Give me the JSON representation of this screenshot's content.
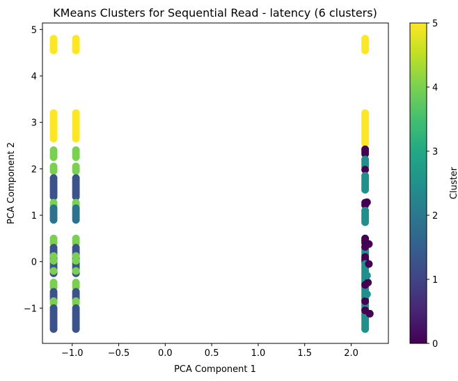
{
  "chart_data": {
    "type": "scatter",
    "title": "KMeans Clusters for Sequential Read - latency (6 clusters)",
    "xlabel": "PCA Component 1",
    "ylabel": "PCA Component 2",
    "xlim": [
      -1.32,
      2.4
    ],
    "ylim": [
      -1.76,
      5.14
    ],
    "xticks": [
      -1.0,
      -0.5,
      0.0,
      0.5,
      1.0,
      1.5,
      2.0
    ],
    "xtick_labels": [
      "−1.0",
      "−0.5",
      "0.0",
      "0.5",
      "1.0",
      "1.5",
      "2.0"
    ],
    "yticks": [
      -1,
      0,
      1,
      2,
      3,
      4,
      5
    ],
    "ytick_labels": [
      "−1",
      "0",
      "1",
      "2",
      "3",
      "4",
      "5"
    ],
    "grid": false,
    "colorbar": {
      "label": "Cluster",
      "range": [
        0,
        5
      ],
      "ticks": [
        "0",
        "1",
        "2",
        "3",
        "4",
        "5"
      ],
      "colormap": "viridis"
    },
    "cluster_colors": [
      "#440154",
      "#3b528b",
      "#21908d",
      "#2c728e",
      "#7ad151",
      "#fde725"
    ],
    "columns": [
      {
        "x": -1.2,
        "runs": [
          {
            "cluster": 5,
            "y0": 4.55,
            "y1": 4.8
          },
          {
            "cluster": 5,
            "y0": 2.65,
            "y1": 3.22
          },
          {
            "cluster": 4,
            "y0": 2.25,
            "y1": 2.42
          },
          {
            "cluster": 4,
            "y0": 1.95,
            "y1": 2.05
          },
          {
            "cluster": 1,
            "y0": 1.4,
            "y1": 1.82
          },
          {
            "cluster": 4,
            "y0": 1.22,
            "y1": 1.3
          },
          {
            "cluster": 3,
            "y0": 0.9,
            "y1": 1.15
          },
          {
            "cluster": 4,
            "y0": 0.4,
            "y1": 0.5
          },
          {
            "cluster": 1,
            "y0": -0.25,
            "y1": 0.32
          },
          {
            "cluster": 4,
            "y0": -0.55,
            "y1": -0.45
          },
          {
            "cluster": 1,
            "y0": -0.8,
            "y1": -0.62
          },
          {
            "cluster": 4,
            "y0": -0.9,
            "y1": -0.82
          },
          {
            "cluster": 1,
            "y0": -1.45,
            "y1": -0.98
          }
        ],
        "points": [
          {
            "cluster": 4,
            "y": 0.12
          },
          {
            "cluster": 4,
            "y": 0.02
          },
          {
            "cluster": 4,
            "y": -0.2
          }
        ]
      },
      {
        "x": -0.96,
        "runs": [
          {
            "cluster": 5,
            "y0": 4.55,
            "y1": 4.8
          },
          {
            "cluster": 5,
            "y0": 2.65,
            "y1": 3.22
          },
          {
            "cluster": 4,
            "y0": 2.25,
            "y1": 2.42
          },
          {
            "cluster": 4,
            "y0": 1.95,
            "y1": 2.05
          },
          {
            "cluster": 1,
            "y0": 1.4,
            "y1": 1.82
          },
          {
            "cluster": 4,
            "y0": 1.22,
            "y1": 1.3
          },
          {
            "cluster": 3,
            "y0": 0.9,
            "y1": 1.15
          },
          {
            "cluster": 4,
            "y0": 0.4,
            "y1": 0.5
          },
          {
            "cluster": 1,
            "y0": -0.25,
            "y1": 0.32
          },
          {
            "cluster": 4,
            "y0": -0.55,
            "y1": -0.45
          },
          {
            "cluster": 1,
            "y0": -0.8,
            "y1": -0.62
          },
          {
            "cluster": 4,
            "y0": -0.9,
            "y1": -0.82
          },
          {
            "cluster": 1,
            "y0": -1.45,
            "y1": -0.98
          }
        ],
        "points": [
          {
            "cluster": 4,
            "y": 0.12
          },
          {
            "cluster": 4,
            "y": 0.02
          },
          {
            "cluster": 4,
            "y": -0.2
          }
        ]
      },
      {
        "x": 2.15,
        "runs": [
          {
            "cluster": 5,
            "y0": 4.55,
            "y1": 4.8
          },
          {
            "cluster": 5,
            "y0": 2.55,
            "y1": 3.22
          },
          {
            "cluster": 0,
            "y0": 2.32,
            "y1": 2.42
          },
          {
            "cluster": 2,
            "y0": 2.05,
            "y1": 2.22
          },
          {
            "cluster": 0,
            "y0": 1.98,
            "y1": 2.02
          },
          {
            "cluster": 2,
            "y0": 1.55,
            "y1": 1.85
          },
          {
            "cluster": 0,
            "y0": 1.22,
            "y1": 1.3
          },
          {
            "cluster": 2,
            "y0": 0.85,
            "y1": 1.12
          },
          {
            "cluster": 0,
            "y0": 0.4,
            "y1": 0.5
          },
          {
            "cluster": 2,
            "y0": 0.15,
            "y1": 0.32
          },
          {
            "cluster": 0,
            "y0": 0.0,
            "y1": 0.12
          },
          {
            "cluster": 2,
            "y0": -1.45,
            "y1": -0.02
          }
        ],
        "points": [
          {
            "cluster": 0,
            "y": -0.5
          },
          {
            "cluster": 0,
            "y": -0.85
          },
          {
            "cluster": 0,
            "y": -1.05
          },
          {
            "cluster": 0,
            "y": 0.32
          },
          {
            "cluster": 0,
            "y": 0.45
          }
        ],
        "spread_points": [
          {
            "cluster": 0,
            "dx": 0.04,
            "y": 0.38
          },
          {
            "cluster": 0,
            "dx": 0.04,
            "y": -0.05
          },
          {
            "cluster": 0,
            "dx": 0.05,
            "y": -1.12
          },
          {
            "cluster": 0,
            "dx": 0.03,
            "y": -0.45
          },
          {
            "cluster": 0,
            "dx": 0.02,
            "y": 1.28
          },
          {
            "cluster": 2,
            "dx": 0.02,
            "y": -0.3
          },
          {
            "cluster": 2,
            "dx": 0.02,
            "y": -0.7
          }
        ]
      }
    ]
  }
}
